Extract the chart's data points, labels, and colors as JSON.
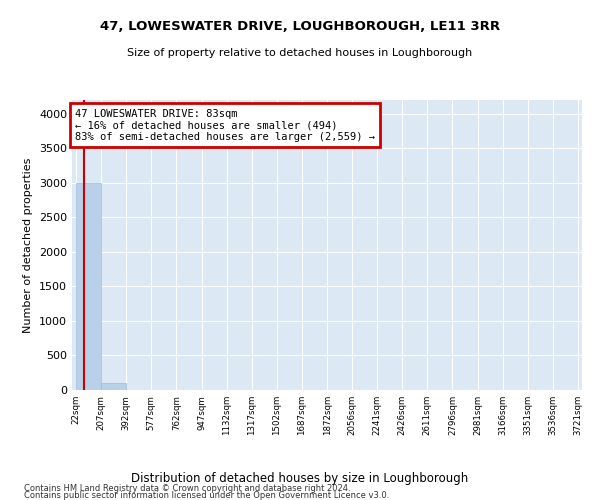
{
  "title": "47, LOWESWATER DRIVE, LOUGHBOROUGH, LE11 3RR",
  "subtitle": "Size of property relative to detached houses in Loughborough",
  "xlabel": "Distribution of detached houses by size in Loughborough",
  "ylabel": "Number of detached properties",
  "bar_color": "#b8d0e8",
  "bar_edge_color": "#a0bcd8",
  "background_color": "#dce9f5",
  "grid_color": "#ffffff",
  "annotation_box_color": "#cc0000",
  "annotation_text": "47 LOWESWATER DRIVE: 83sqm\n← 16% of detached houses are smaller (494)\n83% of semi-detached houses are larger (2,559) →",
  "property_size": 83,
  "property_line_color": "#cc0000",
  "bin_edges": [
    22,
    207,
    392,
    577,
    762,
    947,
    1132,
    1317,
    1502,
    1687,
    1872,
    2056,
    2241,
    2426,
    2611,
    2796,
    2981,
    3166,
    3351,
    3536,
    3721
  ],
  "bin_labels": [
    "22sqm",
    "207sqm",
    "392sqm",
    "577sqm",
    "762sqm",
    "947sqm",
    "1132sqm",
    "1317sqm",
    "1502sqm",
    "1687sqm",
    "1872sqm",
    "2056sqm",
    "2241sqm",
    "2426sqm",
    "2611sqm",
    "2796sqm",
    "2981sqm",
    "3166sqm",
    "3351sqm",
    "3536sqm",
    "3721sqm"
  ],
  "bar_heights": [
    3000,
    100,
    5,
    2,
    1,
    0,
    0,
    0,
    0,
    0,
    0,
    0,
    0,
    0,
    0,
    0,
    0,
    0,
    0,
    0
  ],
  "ylim": [
    0,
    4200
  ],
  "yticks": [
    0,
    500,
    1000,
    1500,
    2000,
    2500,
    3000,
    3500,
    4000
  ],
  "footnote1": "Contains HM Land Registry data © Crown copyright and database right 2024.",
  "footnote2": "Contains public sector information licensed under the Open Government Licence v3.0."
}
